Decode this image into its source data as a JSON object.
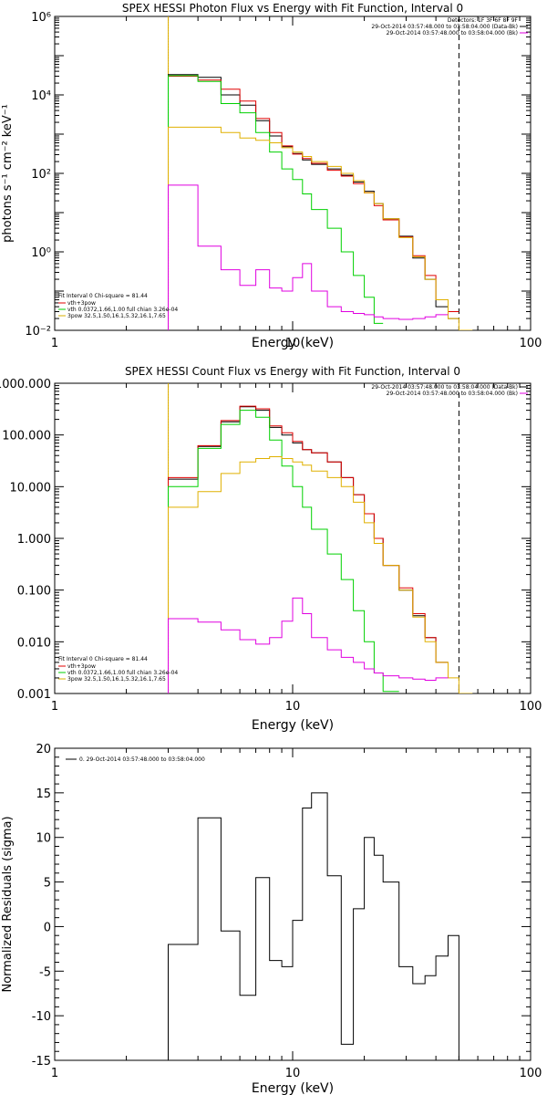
{
  "chart_data": [
    {
      "type": "line",
      "title": "SPEX HESSI Photon Flux vs Energy with Fit Function, Interval 0",
      "xlabel": "Energy (keV)",
      "ylabel": "photons s⁻¹ cm⁻² keV⁻¹",
      "xscale": "log",
      "yscale": "log",
      "xlim": [
        1,
        100
      ],
      "ylim": [
        0.01,
        1000000
      ],
      "x_ticks": [
        1,
        10,
        100
      ],
      "x_tick_labels": [
        "1",
        "10",
        "100"
      ],
      "y_ticks": [
        0.01,
        1,
        100,
        10000,
        1000000
      ],
      "y_tick_labels": [
        "10⁻²",
        "10⁰",
        "10²",
        "10⁴",
        "10⁶"
      ],
      "bin_edges": [
        3.0,
        4.0,
        5.0,
        6.0,
        7.0,
        8.0,
        9.0,
        10.0,
        11.0,
        12.0,
        14.0,
        16.0,
        18.0,
        20.0,
        22.0,
        24.0,
        28.0,
        32.0,
        36.0,
        40.0,
        45.0,
        50.0,
        57.0
      ],
      "vlines": [
        {
          "x": 3.0,
          "style": "dotted",
          "color": "#000000"
        },
        {
          "x": 3.0,
          "style": "solid",
          "color": "#e0b000"
        },
        {
          "x": 50.0,
          "style": "dashed",
          "color": "#000000"
        }
      ],
      "legend_right": {
        "header": "Detectors: 1F 3F 6F 8F 9F",
        "entries": [
          {
            "label": "29-Oct-2014 03:57:48.000 to 03:58:04.000 (Data-Bk)",
            "color": "#000000"
          },
          {
            "label": "29-Oct-2014 03:57:48.000 to 03:58:04.000 (Bk)",
            "color": "#e000e0"
          }
        ]
      },
      "legend_left": {
        "header": "Fit Interval 0   Chi-square = 81.44",
        "entries": [
          {
            "label": "vth+3pow",
            "color": "#e00000"
          },
          {
            "label": "vth 0.0372,1.66,1.00  full chian 3.26e-04",
            "color": "#00d000"
          },
          {
            "label": "3pow 32.5,1.50,16.1,5.32,16.1,7.65",
            "color": "#d8b000"
          }
        ]
      },
      "series": [
        {
          "color": "#000000",
          "values": [
            33000,
            28000,
            10000,
            5500,
            2200,
            900,
            480,
            320,
            220,
            170,
            130,
            90,
            60,
            35,
            17,
            7,
            2.5,
            0.7,
            0.2,
            0.04,
            0.02,
            null
          ]
        },
        {
          "color": "#e00000",
          "values": [
            30000,
            24000,
            14000,
            7000,
            2500,
            1100,
            500,
            310,
            240,
            180,
            120,
            85,
            55,
            32,
            15,
            6.5,
            2.4,
            0.8,
            0.25,
            0.06,
            0.03,
            null
          ]
        },
        {
          "color": "#00d000",
          "values": [
            31000,
            22000,
            6000,
            3500,
            1100,
            350,
            130,
            70,
            30,
            12,
            4,
            1,
            0.25,
            0.07,
            0.015,
            null,
            null,
            null,
            null,
            null,
            null,
            null
          ]
        },
        {
          "color": "#e0b000",
          "values": [
            1500,
            1500,
            1100,
            800,
            700,
            600,
            450,
            350,
            270,
            200,
            150,
            100,
            65,
            32,
            17,
            7,
            2.3,
            0.75,
            0.2,
            0.06,
            0.02,
            0.01
          ]
        },
        {
          "color": "#e000e0",
          "values": [
            50,
            1.4,
            0.35,
            0.14,
            0.35,
            0.12,
            0.1,
            0.22,
            0.5,
            0.1,
            0.04,
            0.03,
            0.027,
            0.025,
            0.022,
            0.02,
            0.019,
            0.02,
            0.022,
            0.025,
            null,
            null
          ]
        }
      ]
    },
    {
      "type": "line",
      "title": "SPEX HESSI Count Flux vs Energy with Fit Function, Interval 0",
      "xlabel": "Energy (keV)",
      "ylabel": "",
      "xscale": "log",
      "yscale": "log",
      "xlim": [
        1,
        100
      ],
      "ylim": [
        0.001,
        1000
      ],
      "x_ticks": [
        1,
        10,
        100
      ],
      "x_tick_labels": [
        "1",
        "10",
        "100"
      ],
      "y_ticks": [
        0.001,
        0.01,
        0.1,
        1,
        10,
        100,
        1000
      ],
      "y_tick_labels": [
        "0.001",
        "0.010",
        "0.100",
        "1.000",
        "10.000",
        "100.000",
        "1000.000"
      ],
      "bin_edges": [
        3.0,
        4.0,
        5.0,
        6.0,
        7.0,
        8.0,
        9.0,
        10.0,
        11.0,
        12.0,
        14.0,
        16.0,
        18.0,
        20.0,
        22.0,
        24.0,
        28.0,
        32.0,
        36.0,
        40.0,
        45.0,
        50.0,
        57.0
      ],
      "vlines": [
        {
          "x": 3.0,
          "style": "dotted",
          "color": "#000000"
        },
        {
          "x": 3.0,
          "style": "solid",
          "color": "#e0b000"
        },
        {
          "x": 50.0,
          "style": "dashed",
          "color": "#000000"
        }
      ],
      "legend_right": {
        "header": "",
        "entries": [
          {
            "label": "29-Oct-2014 03:57:48.000 to 03:58:04.000 (Data-Bk)",
            "color": "#000000"
          },
          {
            "label": "29-Oct-2014 03:57:48.000 to 03:58:04.000 (Bk)",
            "color": "#e000e0"
          }
        ]
      },
      "legend_left": {
        "header": "Fit Interval 0   Chi-square = 81.44",
        "entries": [
          {
            "label": "vth+3pow",
            "color": "#e00000"
          },
          {
            "label": "vth 0.0372,1.66,1.00  full chian 3.26e-04",
            "color": "#00d000"
          },
          {
            "label": "3pow 32.5,1.50,16.1,5.32,16.1,7.65",
            "color": "#d8b000"
          }
        ]
      },
      "series": [
        {
          "color": "#000000",
          "values": [
            14,
            60,
            180,
            350,
            300,
            140,
            100,
            70,
            52,
            45,
            30,
            15,
            7,
            3,
            1,
            0.3,
            0.1,
            0.032,
            0.012,
            0.004,
            null,
            null
          ]
        },
        {
          "color": "#e00000",
          "values": [
            15,
            62,
            190,
            360,
            320,
            150,
            110,
            75,
            52,
            45,
            30,
            15,
            7,
            3,
            1,
            0.3,
            0.11,
            0.035,
            0.012,
            0.004,
            null,
            null
          ]
        },
        {
          "color": "#00d000",
          "values": [
            10,
            55,
            160,
            300,
            220,
            80,
            25,
            10,
            4,
            1.5,
            0.5,
            0.16,
            0.04,
            0.01,
            0.0025,
            0.0011,
            null,
            null,
            null,
            null,
            null,
            null
          ]
        },
        {
          "color": "#e0b000",
          "values": [
            4,
            8,
            18,
            30,
            35,
            38,
            35,
            30,
            26,
            20,
            15,
            10,
            5,
            2,
            0.8,
            0.3,
            0.1,
            0.03,
            0.01,
            0.004,
            0.002,
            0.001
          ]
        },
        {
          "color": "#e000e0",
          "values": [
            0.028,
            0.024,
            0.017,
            0.011,
            0.009,
            0.012,
            0.025,
            0.07,
            0.035,
            0.012,
            0.007,
            0.005,
            0.004,
            0.003,
            0.0025,
            0.0022,
            0.002,
            0.0019,
            0.0018,
            0.002,
            null,
            null
          ]
        }
      ]
    },
    {
      "type": "line",
      "title": "",
      "xlabel": "Energy (keV)",
      "ylabel": "Normalized Residuals (sigma)",
      "xscale": "log",
      "yscale": "linear",
      "xlim": [
        1,
        100
      ],
      "ylim": [
        -15,
        20
      ],
      "x_ticks": [
        1,
        10,
        100
      ],
      "x_tick_labels": [
        "1",
        "10",
        "100"
      ],
      "y_ticks": [
        -15,
        -10,
        -5,
        0,
        5,
        10,
        15,
        20
      ],
      "y_tick_labels": [
        "-15",
        "-10",
        "-5",
        "0",
        "5",
        "10",
        "15",
        "20"
      ],
      "bin_edges": [
        3.0,
        4.0,
        5.0,
        6.0,
        7.0,
        8.0,
        9.0,
        10.0,
        11.0,
        12.0,
        14.0,
        16.0,
        18.0,
        20.0,
        22.0,
        24.0,
        28.0,
        32.0,
        36.0,
        40.0,
        45.0,
        50.0
      ],
      "drop_ends": true,
      "vlines": [],
      "legend_right": {
        "header": "",
        "entries": []
      },
      "legend_left": {
        "header": "",
        "entries": []
      },
      "legend_top": {
        "label": "0. 29-Oct-2014 03:57:48.000 to 03:58:04.000",
        "color": "#000000"
      },
      "series": [
        {
          "color": "#000000",
          "values": [
            -2,
            12.2,
            -0.5,
            -7.7,
            5.5,
            -3.8,
            -4.5,
            0.7,
            13.3,
            15,
            5.7,
            -13.2,
            2,
            10,
            8,
            5,
            -4.5,
            -6.4,
            -5.5,
            -3.3,
            -1
          ]
        }
      ]
    }
  ]
}
